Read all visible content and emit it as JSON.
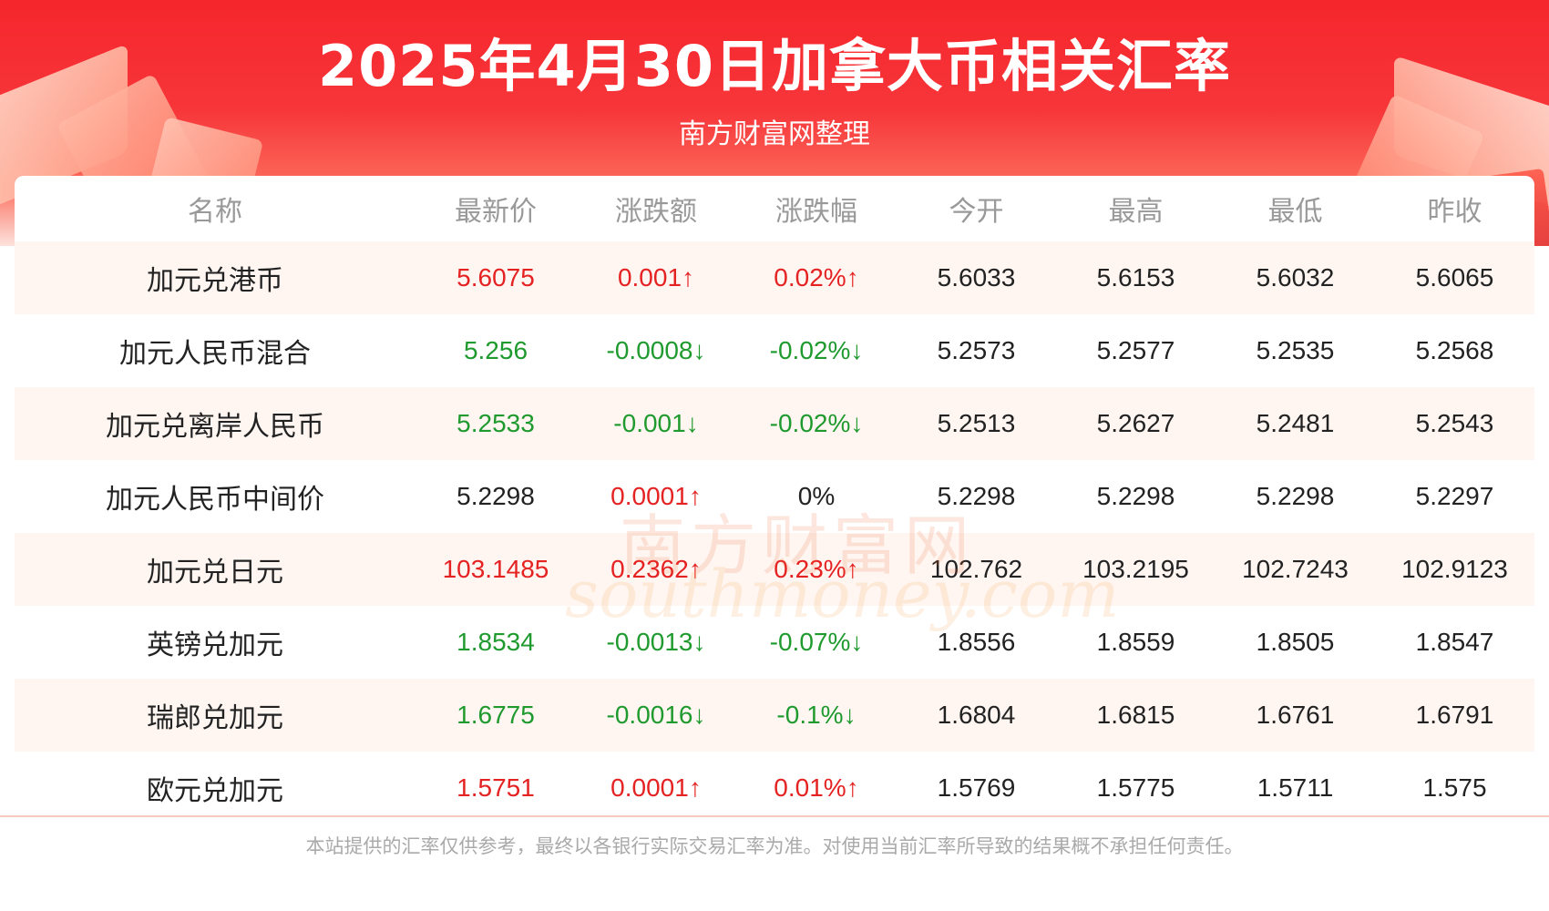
{
  "header": {
    "title": "2025年4月30日加拿大币相关汇率",
    "subtitle": "南方财富网整理"
  },
  "table": {
    "columns": [
      "名称",
      "最新价",
      "涨跌额",
      "涨跌幅",
      "今开",
      "最高",
      "最低",
      "昨收"
    ],
    "rows": [
      {
        "name": "加元兑港币",
        "latest": "5.6075",
        "change": "0.001↑",
        "pct": "0.02%↑",
        "open": "5.6033",
        "high": "5.6153",
        "low": "5.6032",
        "prev": "5.6065",
        "trend": "up",
        "pct_trend": "up"
      },
      {
        "name": "加元人民币混合",
        "latest": "5.256",
        "change": "-0.0008↓",
        "pct": "-0.02%↓",
        "open": "5.2573",
        "high": "5.2577",
        "low": "5.2535",
        "prev": "5.2568",
        "trend": "down",
        "pct_trend": "down"
      },
      {
        "name": "加元兑离岸人民币",
        "latest": "5.2533",
        "change": "-0.001↓",
        "pct": "-0.02%↓",
        "open": "5.2513",
        "high": "5.2627",
        "low": "5.2481",
        "prev": "5.2543",
        "trend": "down",
        "pct_trend": "down"
      },
      {
        "name": "加元人民币中间价",
        "latest": "5.2298",
        "change": "0.0001↑",
        "pct": "0%",
        "open": "5.2298",
        "high": "5.2298",
        "low": "5.2298",
        "prev": "5.2297",
        "trend": "flat",
        "change_trend": "up",
        "pct_trend": "flat"
      },
      {
        "name": "加元兑日元",
        "latest": "103.1485",
        "change": "0.2362↑",
        "pct": "0.23%↑",
        "open": "102.762",
        "high": "103.2195",
        "low": "102.7243",
        "prev": "102.9123",
        "trend": "up",
        "pct_trend": "up"
      },
      {
        "name": "英镑兑加元",
        "latest": "1.8534",
        "change": "-0.0013↓",
        "pct": "-0.07%↓",
        "open": "1.8556",
        "high": "1.8559",
        "low": "1.8505",
        "prev": "1.8547",
        "trend": "down",
        "pct_trend": "down"
      },
      {
        "name": "瑞郎兑加元",
        "latest": "1.6775",
        "change": "-0.0016↓",
        "pct": "-0.1%↓",
        "open": "1.6804",
        "high": "1.6815",
        "low": "1.6761",
        "prev": "1.6791",
        "trend": "down",
        "pct_trend": "down"
      },
      {
        "name": "欧元兑加元",
        "latest": "1.5751",
        "change": "0.0001↑",
        "pct": "0.01%↑",
        "open": "1.5769",
        "high": "1.5775",
        "low": "1.5711",
        "prev": "1.575",
        "trend": "up",
        "pct_trend": "up"
      }
    ]
  },
  "watermark": {
    "cn": "南方财富网",
    "en": "southmoney.com"
  },
  "footer": {
    "disclaimer": "本站提供的汇率仅供参考，最终以各银行实际交易汇率为准。对使用当前汇率所导致的结果概不承担任何责任。"
  },
  "colors": {
    "up": "#e52222",
    "down": "#1f9a2e",
    "header_red": "#f5262c"
  }
}
